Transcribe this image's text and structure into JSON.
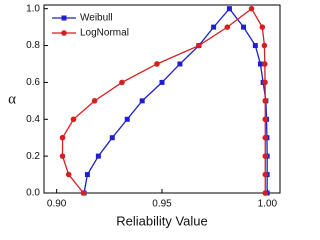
{
  "chart_data": {
    "type": "line",
    "xlabel": "Reliability Value",
    "ylabel": "α",
    "xlim": [
      0.894,
      1.006
    ],
    "ylim": [
      0,
      1.02
    ],
    "xticks": [
      {
        "value": 0.9,
        "label": "0.90"
      },
      {
        "value": 0.95,
        "label": "0.95"
      },
      {
        "value": 1.0,
        "label": "1.00"
      }
    ],
    "yticks": [
      {
        "value": 0,
        "label": "0.0"
      },
      {
        "value": 0.2,
        "label": "0.2"
      },
      {
        "value": 0.4,
        "label": "0.4"
      },
      {
        "value": 0.6,
        "label": "0.6"
      },
      {
        "value": 0.8,
        "label": "0.8"
      },
      {
        "value": 1.0,
        "label": "1.0"
      }
    ],
    "legend": "upper left",
    "series": [
      {
        "name": "Weibull",
        "color": "#1f1fd0",
        "marker": "square",
        "x": [
          0.913,
          0.9146,
          0.9198,
          0.9264,
          0.9335,
          0.9406,
          0.95,
          0.9585,
          0.9675,
          0.9745,
          0.982,
          0.9887,
          0.9943,
          0.9967,
          0.998,
          0.9993,
          0.9996,
          0.9998,
          0.9999,
          0.9999,
          0.9999
        ],
        "values": [
          0,
          0.1,
          0.2,
          0.3,
          0.4,
          0.5,
          0.6,
          0.7,
          0.8,
          0.9,
          1.0,
          0.9,
          0.8,
          0.7,
          0.6,
          0.5,
          0.4,
          0.3,
          0.2,
          0.1,
          0
        ]
      },
      {
        "name": "LogNormal",
        "color": "#d42020",
        "marker": "circle",
        "x": [
          0.9127,
          0.9057,
          0.9028,
          0.9028,
          0.908,
          0.918,
          0.931,
          0.9476,
          0.9675,
          0.981,
          0.9925,
          0.9976,
          0.9986,
          0.9988,
          0.9989,
          0.999,
          0.999,
          0.999,
          0.999,
          0.999,
          0.999
        ],
        "values": [
          0,
          0.1,
          0.2,
          0.3,
          0.4,
          0.5,
          0.6,
          0.7,
          0.8,
          0.9,
          1.0,
          0.9,
          0.8,
          0.7,
          0.6,
          0.5,
          0.4,
          0.3,
          0.2,
          0.1,
          0
        ]
      }
    ]
  }
}
